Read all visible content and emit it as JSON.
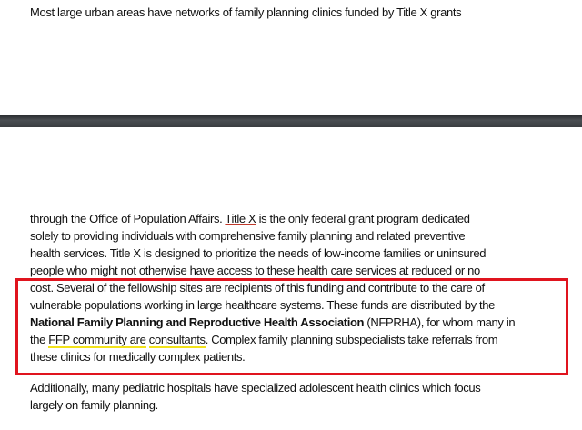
{
  "top_page": {
    "line": "Most large urban areas have networks of family planning clinics funded by Title X grants"
  },
  "page_break": {
    "color": "#3a3d40"
  },
  "bottom_page": {
    "l1_pre": "through the Office of Population Affairs. ",
    "l1_link": "Title X",
    "l1_post": " is the only federal grant program dedicated",
    "l2": "solely to providing individuals with comprehensive family planning and related preventive",
    "l3": "health services. Title X is designed to prioritize the needs of low-income families or uninsured",
    "l4": "people who might not otherwise have access to these health care services at reduced or no",
    "l5": "cost. Several of the fellowship sites are recipients of this funding and contribute to the care of",
    "l6": "vulnerable populations working in large healthcare systems. These funds are distributed by the",
    "l7_bold": "National Family Planning and Reproductive Health Association",
    "l7_post": " (NFPRHA), for whom many in",
    "l8_pre": "the ",
    "l8_u1": "FFP community are",
    "l8_mid": " ",
    "l8_u2": "consultants",
    "l8_post": ". Complex family planning subspecialists take referrals from",
    "l9": "these clinics for medically complex patients.",
    "p2_l1": "Additionally, many pediatric hospitals have specialized adolescent health clinics which focus",
    "p2_l2": "largely on family planning."
  },
  "highlight_box_color": "#e0141e",
  "underline_color": "#f2e21a"
}
